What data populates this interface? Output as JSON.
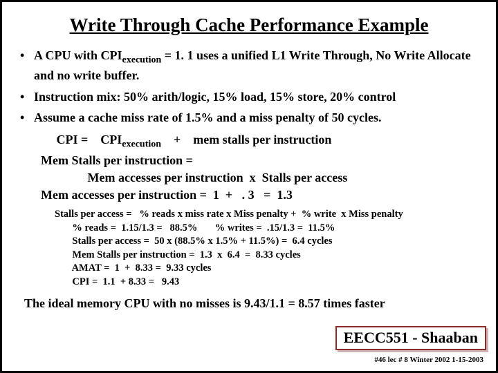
{
  "title": "Write Through Cache Performance Example",
  "bullets": [
    {
      "pre": "A CPU with  CPI",
      "sub": "execution",
      "post": " =  1. 1 uses a unified L1 Write Through, No Write Allocate and no write buffer."
    },
    {
      "pre": "Instruction mix:   50% arith/logic,  15% load, 15% store, 20% control",
      "sub": "",
      "post": ""
    },
    {
      "pre": "Assume a cache miss rate of 1.5% and a miss penalty of 50 cycles.",
      "sub": "",
      "post": ""
    }
  ],
  "mid": {
    "l1a": "     CPI =    CPI",
    "l1sub": "execution",
    "l1b": "    +    mem stalls per instruction",
    "l2": "Mem Stalls per instruction =",
    "l3": "               Mem accesses per instruction  x  Stalls per access",
    "l4": "Mem accesses per instruction =  1  +   . 3   =  1.3"
  },
  "calc": [
    "Stalls per access =   % reads x miss rate x Miss penalty +  % write  x Miss penalty",
    "       % reads =  1.15/1.3 =   88.5%       % writes =  .15/1.3 =  11.5%",
    "       Stalls per access =  50 x (88.5% x 1.5% + 11.5%) =  6.4 cycles",
    "       Mem Stalls per instruction =  1.3  x  6.4  =  8.33 cycles",
    "       AMAT =  1  +  8.33 =  9.33 cycles",
    "       CPI =  1.1  + 8.33 =   9.43"
  ],
  "conclusion": "The ideal memory CPU with no misses is  9.43/1.1 =  8.57 times faster",
  "footer": {
    "course": "EECC551 - Shaaban",
    "meta": "#46  lec # 8   Winter 2002  1-15-2003"
  },
  "colors": {
    "border": "#000000",
    "footerBorder": "#8a2a2a",
    "text": "#000000",
    "bg": "#ffffff"
  }
}
